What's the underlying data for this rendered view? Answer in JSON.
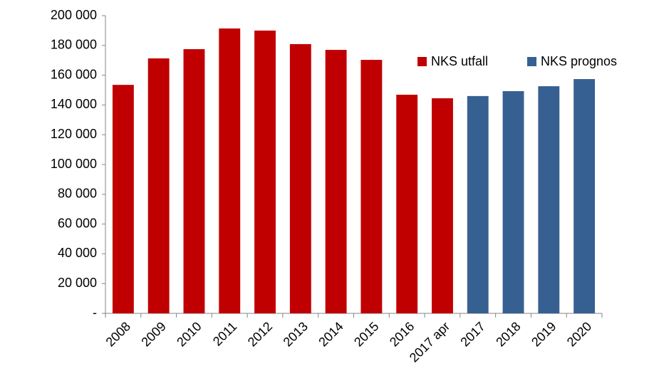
{
  "chart_data": {
    "type": "bar",
    "categories": [
      "2008",
      "2009",
      "2010",
      "2011",
      "2012",
      "2013",
      "2014",
      "2015",
      "2016",
      "2017 apr",
      "2017",
      "2018",
      "2019",
      "2020"
    ],
    "series": [
      {
        "name": "NKS utfall",
        "color": "#c00000",
        "values": [
          153500,
          171300,
          177500,
          191400,
          190000,
          180900,
          177000,
          170300,
          146900,
          144500,
          null,
          null,
          null,
          null
        ]
      },
      {
        "name": "NKS prognos",
        "color": "#376092",
        "values": [
          null,
          null,
          null,
          null,
          null,
          null,
          null,
          null,
          null,
          null,
          146000,
          149300,
          152600,
          157400
        ]
      }
    ],
    "ylim": [
      0,
      200000
    ],
    "yticks": [
      {
        "value": 0,
        "label": "-"
      },
      {
        "value": 20000,
        "label": "20 000"
      },
      {
        "value": 40000,
        "label": "40 000"
      },
      {
        "value": 60000,
        "label": "60 000"
      },
      {
        "value": 80000,
        "label": "80 000"
      },
      {
        "value": 100000,
        "label": "100 000"
      },
      {
        "value": 120000,
        "label": "120 000"
      },
      {
        "value": 140000,
        "label": "140 000"
      },
      {
        "value": 160000,
        "label": "160 000"
      },
      {
        "value": 180000,
        "label": "180 000"
      },
      {
        "value": 200000,
        "label": "200 000"
      }
    ],
    "grid": false,
    "legend": "top-right"
  }
}
